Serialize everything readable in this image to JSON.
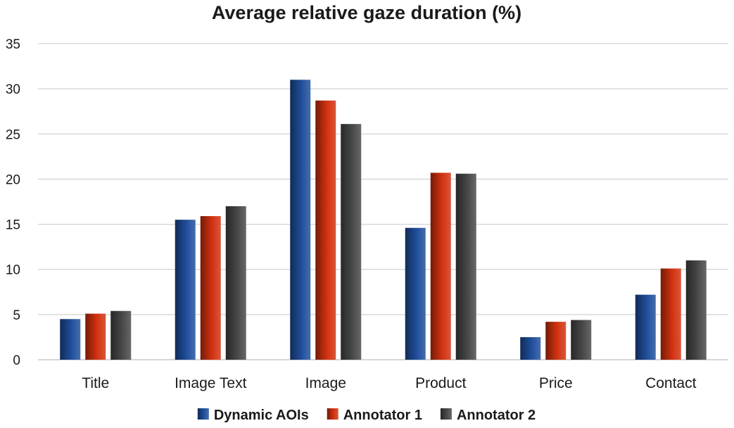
{
  "chart_data": {
    "type": "bar",
    "title": "Average relative gaze duration (%)",
    "xlabel": "",
    "ylabel": "",
    "categories": [
      "Title",
      "Image Text",
      "Image",
      "Product",
      "Price",
      "Contact"
    ],
    "series": [
      {
        "name": "Dynamic AOIs",
        "values": [
          4.5,
          15.5,
          31.0,
          14.6,
          2.5,
          7.2
        ],
        "color": "#1f4e9c"
      },
      {
        "name": "Annotator 1",
        "values": [
          5.1,
          15.9,
          28.7,
          20.7,
          4.2,
          10.1
        ],
        "color": "#d1310f"
      },
      {
        "name": "Annotator 2",
        "values": [
          5.4,
          17.0,
          26.1,
          20.6,
          4.4,
          11.0
        ],
        "color": "#474747"
      }
    ],
    "ylim": [
      0,
      35
    ],
    "yticks": [
      0,
      5,
      10,
      15,
      20,
      25,
      30,
      35
    ],
    "grid": true,
    "legend_position": "bottom"
  }
}
